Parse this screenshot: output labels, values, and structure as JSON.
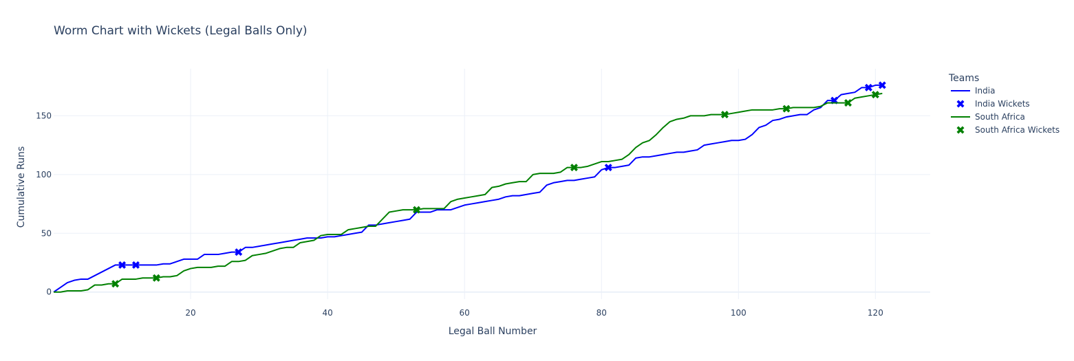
{
  "chart_data": {
    "type": "line",
    "title": "Worm Chart with Wickets (Legal Balls Only)",
    "xlabel": "Legal Ball Number",
    "ylabel": "Cumulative Runs",
    "xlim": [
      0,
      128
    ],
    "ylim": [
      -6,
      190
    ],
    "xticks": [
      20,
      40,
      60,
      80,
      100,
      120
    ],
    "yticks": [
      0,
      50,
      100,
      150
    ],
    "grid": true,
    "legend": {
      "title": "Teams",
      "placement": "top-right"
    },
    "series": [
      {
        "name": "India",
        "kind": "line",
        "color": "#0000ff",
        "points": [
          [
            0,
            0
          ],
          [
            1,
            4
          ],
          [
            2,
            8
          ],
          [
            3,
            10
          ],
          [
            4,
            11
          ],
          [
            5,
            11
          ],
          [
            6,
            14
          ],
          [
            7,
            17
          ],
          [
            8,
            20
          ],
          [
            9,
            23
          ],
          [
            10,
            23
          ],
          [
            11,
            23
          ],
          [
            12,
            23
          ],
          [
            13,
            23
          ],
          [
            14,
            23
          ],
          [
            15,
            23
          ],
          [
            16,
            24
          ],
          [
            17,
            24
          ],
          [
            18,
            26
          ],
          [
            19,
            28
          ],
          [
            20,
            28
          ],
          [
            21,
            28
          ],
          [
            22,
            32
          ],
          [
            23,
            32
          ],
          [
            24,
            32
          ],
          [
            25,
            33
          ],
          [
            26,
            34
          ],
          [
            27,
            34
          ],
          [
            28,
            38
          ],
          [
            29,
            38
          ],
          [
            30,
            39
          ],
          [
            31,
            40
          ],
          [
            32,
            41
          ],
          [
            33,
            42
          ],
          [
            34,
            43
          ],
          [
            35,
            44
          ],
          [
            36,
            45
          ],
          [
            37,
            46
          ],
          [
            38,
            46
          ],
          [
            39,
            46
          ],
          [
            40,
            47
          ],
          [
            41,
            47
          ],
          [
            42,
            48
          ],
          [
            43,
            49
          ],
          [
            44,
            50
          ],
          [
            45,
            51
          ],
          [
            46,
            57
          ],
          [
            47,
            57
          ],
          [
            48,
            58
          ],
          [
            49,
            59
          ],
          [
            50,
            60
          ],
          [
            51,
            61
          ],
          [
            52,
            62
          ],
          [
            53,
            68
          ],
          [
            54,
            68
          ],
          [
            55,
            68
          ],
          [
            56,
            70
          ],
          [
            57,
            70
          ],
          [
            58,
            70
          ],
          [
            59,
            72
          ],
          [
            60,
            74
          ],
          [
            61,
            75
          ],
          [
            62,
            76
          ],
          [
            63,
            77
          ],
          [
            64,
            78
          ],
          [
            65,
            79
          ],
          [
            66,
            81
          ],
          [
            67,
            82
          ],
          [
            68,
            82
          ],
          [
            69,
            83
          ],
          [
            70,
            84
          ],
          [
            71,
            85
          ],
          [
            72,
            91
          ],
          [
            73,
            93
          ],
          [
            74,
            94
          ],
          [
            75,
            95
          ],
          [
            76,
            95
          ],
          [
            77,
            96
          ],
          [
            78,
            97
          ],
          [
            79,
            98
          ],
          [
            80,
            104
          ],
          [
            81,
            106
          ],
          [
            82,
            106
          ],
          [
            83,
            107
          ],
          [
            84,
            108
          ],
          [
            85,
            114
          ],
          [
            86,
            115
          ],
          [
            87,
            115
          ],
          [
            88,
            116
          ],
          [
            89,
            117
          ],
          [
            90,
            118
          ],
          [
            91,
            119
          ],
          [
            92,
            119
          ],
          [
            93,
            120
          ],
          [
            94,
            121
          ],
          [
            95,
            125
          ],
          [
            96,
            126
          ],
          [
            97,
            127
          ],
          [
            98,
            128
          ],
          [
            99,
            129
          ],
          [
            100,
            129
          ],
          [
            101,
            130
          ],
          [
            102,
            134
          ],
          [
            103,
            140
          ],
          [
            104,
            142
          ],
          [
            105,
            146
          ],
          [
            106,
            147
          ],
          [
            107,
            149
          ],
          [
            108,
            150
          ],
          [
            109,
            151
          ],
          [
            110,
            151
          ],
          [
            111,
            155
          ],
          [
            112,
            157
          ],
          [
            113,
            163
          ],
          [
            114,
            163
          ],
          [
            115,
            168
          ],
          [
            116,
            169
          ],
          [
            117,
            170
          ],
          [
            118,
            174
          ],
          [
            119,
            174
          ],
          [
            120,
            176
          ],
          [
            121,
            176
          ]
        ]
      },
      {
        "name": "India Wickets",
        "kind": "marker",
        "color": "#0000ff",
        "points": [
          [
            10,
            23
          ],
          [
            12,
            23
          ],
          [
            27,
            34
          ],
          [
            81,
            106
          ],
          [
            114,
            163
          ],
          [
            119,
            174
          ],
          [
            121,
            176
          ]
        ]
      },
      {
        "name": "South Africa",
        "kind": "line",
        "color": "#008000",
        "points": [
          [
            0,
            0
          ],
          [
            1,
            0
          ],
          [
            2,
            1
          ],
          [
            3,
            1
          ],
          [
            4,
            1
          ],
          [
            5,
            2
          ],
          [
            6,
            6
          ],
          [
            7,
            6
          ],
          [
            8,
            7
          ],
          [
            9,
            7
          ],
          [
            10,
            11
          ],
          [
            11,
            11
          ],
          [
            12,
            11
          ],
          [
            13,
            12
          ],
          [
            14,
            12
          ],
          [
            15,
            12
          ],
          [
            16,
            13
          ],
          [
            17,
            13
          ],
          [
            18,
            14
          ],
          [
            19,
            18
          ],
          [
            20,
            20
          ],
          [
            21,
            21
          ],
          [
            22,
            21
          ],
          [
            23,
            21
          ],
          [
            24,
            22
          ],
          [
            25,
            22
          ],
          [
            26,
            26
          ],
          [
            27,
            26
          ],
          [
            28,
            27
          ],
          [
            29,
            31
          ],
          [
            30,
            32
          ],
          [
            31,
            33
          ],
          [
            32,
            35
          ],
          [
            33,
            37
          ],
          [
            34,
            38
          ],
          [
            35,
            38
          ],
          [
            36,
            42
          ],
          [
            37,
            43
          ],
          [
            38,
            44
          ],
          [
            39,
            48
          ],
          [
            40,
            49
          ],
          [
            41,
            49
          ],
          [
            42,
            49
          ],
          [
            43,
            53
          ],
          [
            44,
            54
          ],
          [
            45,
            55
          ],
          [
            46,
            56
          ],
          [
            47,
            56
          ],
          [
            48,
            62
          ],
          [
            49,
            68
          ],
          [
            50,
            69
          ],
          [
            51,
            70
          ],
          [
            52,
            70
          ],
          [
            53,
            70
          ],
          [
            54,
            71
          ],
          [
            55,
            71
          ],
          [
            56,
            71
          ],
          [
            57,
            71
          ],
          [
            58,
            77
          ],
          [
            59,
            79
          ],
          [
            60,
            80
          ],
          [
            61,
            81
          ],
          [
            62,
            82
          ],
          [
            63,
            83
          ],
          [
            64,
            89
          ],
          [
            65,
            90
          ],
          [
            66,
            92
          ],
          [
            67,
            93
          ],
          [
            68,
            94
          ],
          [
            69,
            94
          ],
          [
            70,
            100
          ],
          [
            71,
            101
          ],
          [
            72,
            101
          ],
          [
            73,
            101
          ],
          [
            74,
            102
          ],
          [
            75,
            106
          ],
          [
            76,
            106
          ],
          [
            77,
            106
          ],
          [
            78,
            107
          ],
          [
            79,
            109
          ],
          [
            80,
            111
          ],
          [
            81,
            111
          ],
          [
            82,
            112
          ],
          [
            83,
            113
          ],
          [
            84,
            117
          ],
          [
            85,
            123
          ],
          [
            86,
            127
          ],
          [
            87,
            129
          ],
          [
            88,
            134
          ],
          [
            89,
            140
          ],
          [
            90,
            145
          ],
          [
            91,
            147
          ],
          [
            92,
            148
          ],
          [
            93,
            150
          ],
          [
            94,
            150
          ],
          [
            95,
            150
          ],
          [
            96,
            151
          ],
          [
            97,
            151
          ],
          [
            98,
            151
          ],
          [
            99,
            152
          ],
          [
            100,
            153
          ],
          [
            101,
            154
          ],
          [
            102,
            155
          ],
          [
            103,
            155
          ],
          [
            104,
            155
          ],
          [
            105,
            155
          ],
          [
            106,
            156
          ],
          [
            107,
            156
          ],
          [
            108,
            157
          ],
          [
            109,
            157
          ],
          [
            110,
            157
          ],
          [
            111,
            157
          ],
          [
            112,
            158
          ],
          [
            113,
            161
          ],
          [
            114,
            161
          ],
          [
            115,
            161
          ],
          [
            116,
            161
          ],
          [
            117,
            165
          ],
          [
            118,
            166
          ],
          [
            119,
            167
          ],
          [
            120,
            168
          ],
          [
            121,
            169
          ]
        ]
      },
      {
        "name": "South Africa Wickets",
        "kind": "marker",
        "color": "#008000",
        "points": [
          [
            9,
            7
          ],
          [
            15,
            12
          ],
          [
            53,
            70
          ],
          [
            76,
            106
          ],
          [
            98,
            151
          ],
          [
            107,
            156
          ],
          [
            116,
            161
          ],
          [
            120,
            168
          ]
        ]
      }
    ]
  }
}
